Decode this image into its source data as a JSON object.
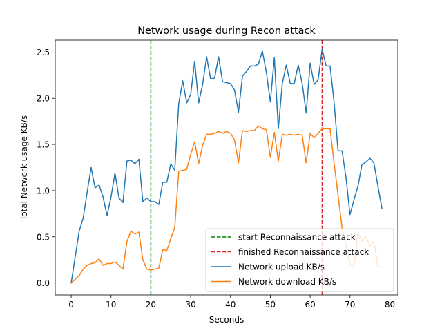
{
  "chart_data": {
    "type": "line",
    "title": "Network usage during Recon attack",
    "xlabel": "Seconds",
    "ylabel": "Total Network usage KB/s",
    "xlim": [
      -4,
      82
    ],
    "ylim": [
      -0.13,
      2.63
    ],
    "xticks": [
      0,
      10,
      20,
      30,
      40,
      50,
      60,
      70,
      80
    ],
    "yticks": [
      0.0,
      0.5,
      1.0,
      1.5,
      2.0,
      2.5
    ],
    "xtick_labels": [
      "0",
      "10",
      "20",
      "30",
      "40",
      "50",
      "60",
      "70",
      "80"
    ],
    "ytick_labels": [
      "0.0",
      "0.5",
      "1.0",
      "1.5",
      "2.0",
      "2.5"
    ],
    "grid": false,
    "legend_position": "lower-right",
    "vlines": [
      {
        "name": "start Reconnaissance attack",
        "x": 20,
        "color": "#008000",
        "style": "dashed"
      },
      {
        "name": "finished Reconnaissance attack",
        "x": 63,
        "color": "#d62728",
        "style": "dashed"
      }
    ],
    "series": [
      {
        "name": "Network upload KB/s",
        "color": "#1f77b4",
        "x": [
          0,
          1,
          2,
          3,
          4,
          5,
          6,
          7,
          8,
          9,
          10,
          11,
          12,
          13,
          14,
          15,
          16,
          17,
          18,
          19,
          20,
          21,
          22,
          23,
          24,
          25,
          26,
          27,
          28,
          29,
          30,
          31,
          32,
          33,
          34,
          35,
          36,
          37,
          38,
          39,
          40,
          41,
          42,
          43,
          44,
          45,
          46,
          47,
          48,
          49,
          50,
          51,
          52,
          53,
          54,
          55,
          56,
          57,
          58,
          59,
          60,
          61,
          62,
          63,
          64,
          65,
          66,
          67,
          68,
          69,
          70,
          71,
          72,
          73,
          74,
          75,
          76,
          77,
          78
        ],
        "values": [
          0.0,
          0.28,
          0.56,
          0.7,
          0.98,
          1.25,
          1.03,
          1.06,
          0.93,
          0.73,
          0.93,
          1.19,
          0.92,
          0.87,
          1.32,
          1.33,
          1.29,
          1.34,
          0.88,
          0.92,
          0.88,
          0.88,
          0.85,
          1.09,
          1.09,
          1.29,
          1.22,
          1.94,
          2.19,
          1.95,
          2.04,
          2.4,
          1.95,
          2.15,
          2.45,
          2.21,
          2.22,
          2.45,
          2.18,
          2.17,
          2.16,
          2.09,
          1.85,
          2.24,
          2.29,
          2.35,
          2.35,
          2.37,
          2.51,
          2.28,
          1.96,
          2.44,
          1.67,
          2.16,
          2.36,
          2.16,
          2.16,
          2.36,
          2.16,
          1.84,
          2.38,
          2.15,
          2.2,
          2.53,
          2.35,
          2.35,
          1.96,
          1.43,
          1.43,
          1.14,
          0.74,
          0.9,
          1.05,
          1.28,
          1.31,
          1.35,
          1.3,
          1.05,
          0.81
        ]
      },
      {
        "name": "Network download KB/s",
        "color": "#ff7f0e",
        "x": [
          0,
          1,
          2,
          3,
          4,
          5,
          6,
          7,
          8,
          9,
          10,
          11,
          12,
          13,
          14,
          15,
          16,
          17,
          18,
          19,
          20,
          21,
          22,
          23,
          24,
          25,
          26,
          27,
          28,
          29,
          30,
          31,
          32,
          33,
          34,
          35,
          36,
          37,
          38,
          39,
          40,
          41,
          42,
          43,
          44,
          45,
          46,
          47,
          48,
          49,
          50,
          51,
          52,
          53,
          54,
          55,
          56,
          57,
          58,
          59,
          60,
          61,
          62,
          63,
          64,
          65,
          66,
          67,
          68,
          69,
          70,
          71,
          72,
          73,
          74,
          75,
          76,
          77,
          78
        ],
        "values": [
          0.0,
          0.04,
          0.08,
          0.15,
          0.19,
          0.21,
          0.22,
          0.26,
          0.19,
          0.21,
          0.21,
          0.23,
          0.19,
          0.15,
          0.45,
          0.56,
          0.53,
          0.55,
          0.25,
          0.15,
          0.14,
          0.15,
          0.16,
          0.36,
          0.35,
          0.48,
          0.6,
          1.21,
          1.22,
          1.23,
          1.39,
          1.53,
          1.29,
          1.49,
          1.61,
          1.61,
          1.62,
          1.64,
          1.62,
          1.64,
          1.62,
          1.55,
          1.3,
          1.65,
          1.64,
          1.65,
          1.65,
          1.7,
          1.67,
          1.66,
          1.36,
          1.63,
          1.32,
          1.61,
          1.6,
          1.61,
          1.6,
          1.61,
          1.6,
          1.3,
          1.62,
          1.57,
          1.62,
          1.67,
          1.67,
          1.67,
          1.3,
          0.95,
          0.6,
          0.4,
          0.2,
          0.18,
          0.55,
          0.45,
          0.5,
          0.4,
          0.45,
          0.18,
          0.17
        ]
      }
    ]
  }
}
